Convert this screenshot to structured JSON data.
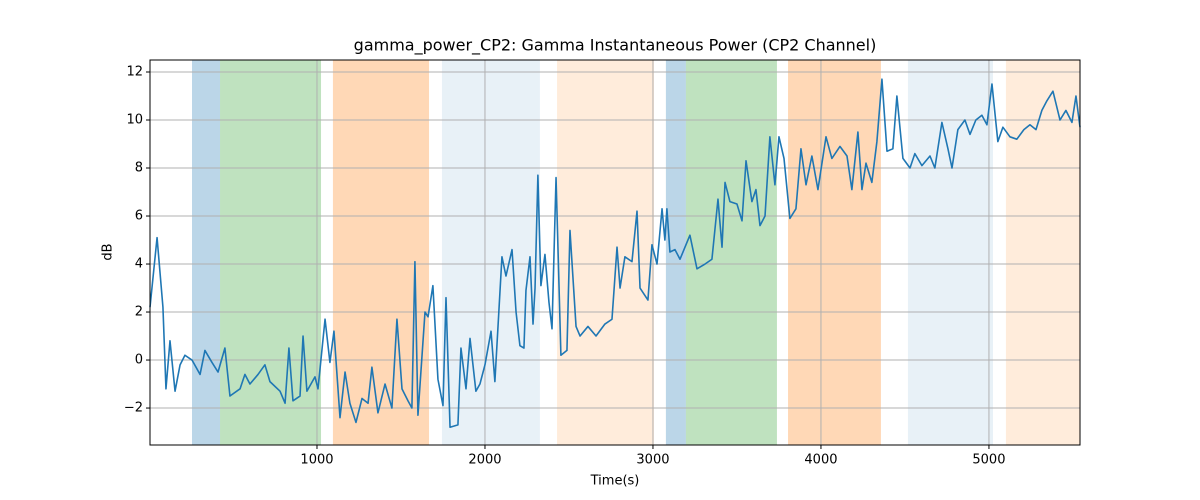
{
  "chart_data": {
    "type": "line",
    "title": "gamma_power_CP2: Gamma Instantaneous Power (CP2 Channel)",
    "xlabel": "Time(s)",
    "ylabel": "dB",
    "color": "#1f77b4",
    "x": [
      6,
      48,
      83,
      101,
      125,
      155,
      185,
      214,
      256,
      304,
      333,
      375,
      411,
      452,
      482,
      542,
      571,
      601,
      649,
      690,
      720,
      780,
      810,
      833,
      857,
      899,
      917,
      940,
      988,
      1006,
      1048,
      1077,
      1101,
      1137,
      1167,
      1196,
      1232,
      1268,
      1304,
      1327,
      1363,
      1405,
      1446,
      1476,
      1506,
      1542,
      1565,
      1583,
      1601,
      1643,
      1661,
      1690,
      1720,
      1750,
      1768,
      1792,
      1839,
      1857,
      1887,
      1911,
      1946,
      1970,
      2000,
      2036,
      2059,
      2101,
      2125,
      2161,
      2185,
      2208,
      2232,
      2244,
      2268,
      2286,
      2298,
      2315,
      2333,
      2357,
      2381,
      2399,
      2423,
      2452,
      2488,
      2506,
      2542,
      2566,
      2613,
      2661,
      2714,
      2756,
      2786,
      2804,
      2833,
      2875,
      2905,
      2923,
      2970,
      2994,
      3024,
      3054,
      3071,
      3083,
      3101,
      3131,
      3161,
      3220,
      3262,
      3310,
      3351,
      3387,
      3411,
      3429,
      3458,
      3500,
      3530,
      3554,
      3589,
      3613,
      3637,
      3667,
      3696,
      3726,
      3750,
      3780,
      3815,
      3851,
      3881,
      3911,
      3946,
      3982,
      4030,
      4065,
      4113,
      4155,
      4184,
      4220,
      4244,
      4268,
      4303,
      4333,
      4363,
      4393,
      4428,
      4452,
      4488,
      4530,
      4559,
      4601,
      4649,
      4678,
      4720,
      4756,
      4780,
      4815,
      4857,
      4887,
      4922,
      4958,
      4988,
      5018,
      5053,
      5083,
      5125,
      5166,
      5208,
      5244,
      5280,
      5315,
      5345,
      5381,
      5423,
      5458,
      5494,
      5518,
      5542
    ],
    "values": [
      2.2,
      5.1,
      2.2,
      -1.2,
      0.8,
      -1.3,
      -0.2,
      0.2,
      0,
      -0.6,
      0.4,
      -0.1,
      -0.5,
      0.5,
      -1.5,
      -1.2,
      -0.6,
      -1,
      -0.6,
      -0.2,
      -0.9,
      -1.3,
      -1.8,
      0.5,
      -1.7,
      -1.5,
      1.0,
      -1.3,
      -0.7,
      -1.2,
      1.7,
      -0.1,
      1.2,
      -2.4,
      -0.5,
      -1.8,
      -2.6,
      -1.6,
      -1.8,
      -0.3,
      -2.2,
      -1.0,
      -2.0,
      1.7,
      -1.2,
      -1.7,
      -2.0,
      4.1,
      -2.3,
      2.0,
      1.8,
      3.1,
      -0.8,
      -1.9,
      2.6,
      -2.8,
      -2.7,
      0.5,
      -1.2,
      0.9,
      -1.3,
      -1.0,
      -0.2,
      1.2,
      -0.9,
      4.3,
      3.5,
      4.6,
      2.0,
      0.6,
      0.5,
      2.9,
      4.3,
      1.5,
      3.0,
      7.7,
      3.1,
      4.4,
      2.4,
      1.3,
      7.6,
      0.2,
      0.4,
      5.4,
      1.4,
      1.0,
      1.4,
      1.0,
      1.5,
      1.7,
      4.7,
      3.0,
      4.3,
      4.1,
      6.2,
      3.0,
      2.5,
      4.8,
      4.0,
      6.3,
      5.0,
      6.3,
      4.5,
      4.6,
      4.2,
      5.2,
      3.8,
      4.0,
      4.2,
      6.7,
      4.7,
      7.4,
      6.6,
      6.5,
      5.8,
      8.3,
      6.6,
      7.1,
      5.6,
      6.0,
      9.3,
      7.3,
      9.3,
      8.4,
      5.9,
      6.3,
      8.8,
      7.3,
      8.5,
      7.1,
      9.3,
      8.4,
      8.9,
      8.5,
      7.1,
      9.5,
      7.1,
      8.2,
      7.4,
      9.1,
      11.7,
      8.7,
      8.8,
      11.0,
      8.4,
      8.0,
      8.6,
      8.1,
      8.5,
      8.0,
      9.9,
      8.8,
      8.0,
      9.6,
      10.0,
      9.4,
      10.0,
      10.2,
      9.8,
      11.5,
      9.1,
      9.7,
      9.3,
      9.2,
      9.6,
      9.8,
      9.6,
      10.4,
      10.8,
      11.2,
      10.0,
      10.4,
      9.9,
      11.0,
      9.7
    ],
    "spans": [
      {
        "start": 256,
        "end": 423,
        "color": "#1f77b4",
        "opacity": 0.3
      },
      {
        "start": 423,
        "end": 1024,
        "color": "#2ca02c",
        "opacity": 0.3
      },
      {
        "start": 1095,
        "end": 1667,
        "color": "#ff7f0e",
        "opacity": 0.3
      },
      {
        "start": 1744,
        "end": 2327,
        "color": "#1f77b4",
        "opacity": 0.1
      },
      {
        "start": 2429,
        "end": 3006,
        "color": "#ff7f0e",
        "opacity": 0.15
      },
      {
        "start": 3077,
        "end": 3196,
        "color": "#1f77b4",
        "opacity": 0.3
      },
      {
        "start": 3196,
        "end": 3738,
        "color": "#2ca02c",
        "opacity": 0.3
      },
      {
        "start": 3804,
        "end": 4357,
        "color": "#ff7f0e",
        "opacity": 0.3
      },
      {
        "start": 4518,
        "end": 5024,
        "color": "#1f77b4",
        "opacity": 0.1
      },
      {
        "start": 5101,
        "end": 5542,
        "color": "#ff7f0e",
        "opacity": 0.15
      }
    ],
    "xlim": [
      6,
      5542
    ],
    "ylim": [
      -3.54,
      12.5
    ],
    "xticks": [
      1000,
      2000,
      3000,
      4000,
      5000
    ],
    "yticks": [
      {
        "value": -2,
        "label": "−2"
      },
      0,
      2,
      4,
      6,
      8,
      10,
      12
    ],
    "grid": true
  }
}
